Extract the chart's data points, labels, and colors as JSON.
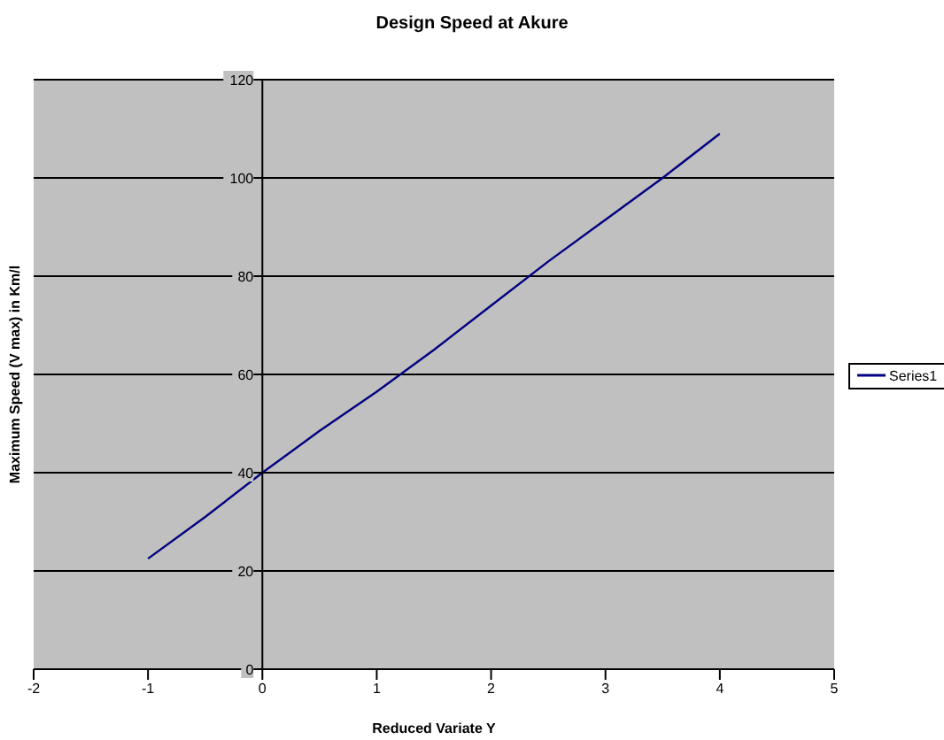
{
  "chart_data": {
    "type": "line",
    "title": "Design Speed at Akure",
    "xlabel": "Reduced Variate Y",
    "ylabel": "Maximum Speed (V max) in Km/l",
    "x": [
      -1,
      -0.5,
      0,
      0.5,
      1,
      1.5,
      2,
      2.5,
      3,
      3.5,
      4
    ],
    "series": [
      {
        "name": "Series1",
        "color": "#000080",
        "values": [
          22.5,
          31,
          40,
          48.5,
          56.5,
          65,
          74,
          83,
          91.5,
          100,
          109
        ]
      }
    ],
    "xlim": [
      -2,
      5
    ],
    "xticks": [
      -2,
      -1,
      0,
      1,
      2,
      3,
      4,
      5
    ],
    "ylim": [
      0,
      120
    ],
    "yticks": [
      0,
      20,
      40,
      60,
      80,
      100,
      120
    ],
    "grid": "y",
    "legend": "right",
    "marker": "none",
    "line_style": "solid"
  }
}
